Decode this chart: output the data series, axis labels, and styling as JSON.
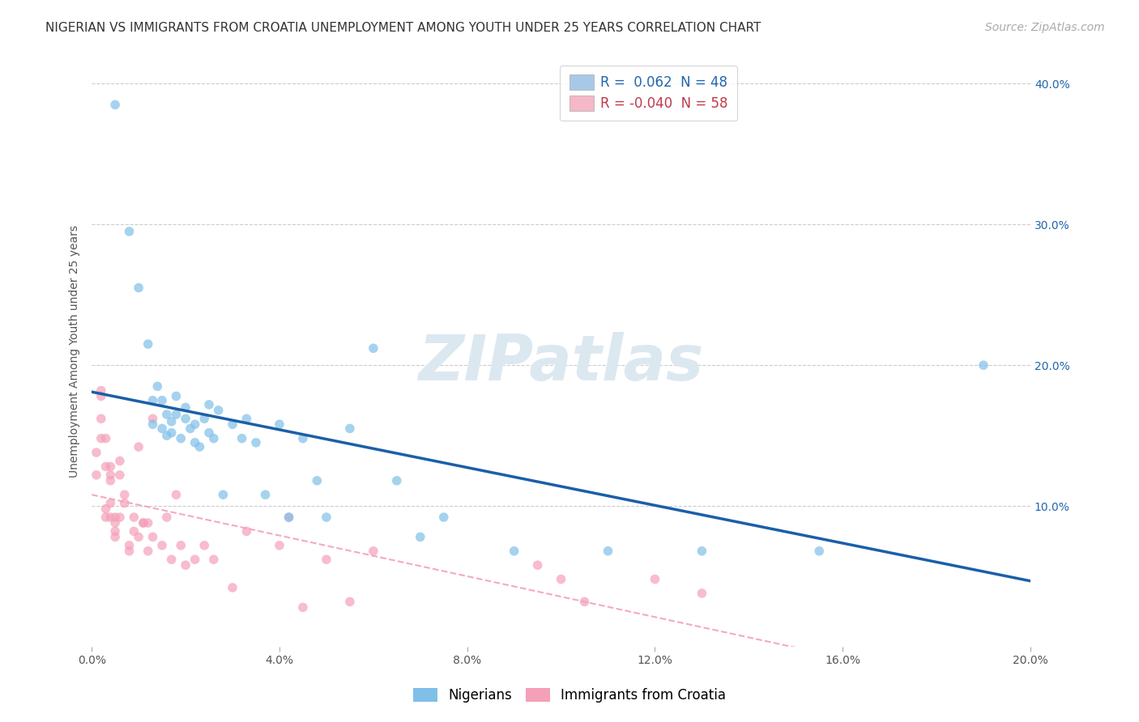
{
  "title": "NIGERIAN VS IMMIGRANTS FROM CROATIA UNEMPLOYMENT AMONG YOUTH UNDER 25 YEARS CORRELATION CHART",
  "source": "Source: ZipAtlas.com",
  "ylabel": "Unemployment Among Youth under 25 years",
  "xlim": [
    0.0,
    0.2
  ],
  "ylim": [
    0.0,
    0.42
  ],
  "xticks": [
    0.0,
    0.04,
    0.08,
    0.12,
    0.16,
    0.2
  ],
  "xtick_labels": [
    "0.0%",
    "4.0%",
    "8.0%",
    "12.0%",
    "16.0%",
    "20.0%"
  ],
  "right_ytick_labels": [
    "10.0%",
    "20.0%",
    "30.0%",
    "40.0%"
  ],
  "right_ytick_vals": [
    0.1,
    0.2,
    0.3,
    0.4
  ],
  "legend1_label": "R =  0.062  N = 48",
  "legend2_label": "R = -0.040  N = 58",
  "legend1_R_color": "#2166ac",
  "legend2_R_color": "#c0394b",
  "legend1_patch_color": "#a8c8e8",
  "legend2_patch_color": "#f4b8c8",
  "watermark": "ZIPatlas",
  "watermark_color": "#dce8f0",
  "bg_color": "#ffffff",
  "grid_color": "#cccccc",
  "scatter_alpha": 0.7,
  "scatter_size": 70,
  "blue_scatter_color": "#7fbfe8",
  "pink_scatter_color": "#f4a0b8",
  "blue_line_color": "#1a5fa8",
  "pink_line_color": "#f4a0b8",
  "title_fontsize": 11,
  "source_fontsize": 10,
  "axis_label_fontsize": 10,
  "tick_fontsize": 10,
  "legend_fontsize": 12,
  "nigerians_x": [
    0.005,
    0.008,
    0.01,
    0.012,
    0.013,
    0.013,
    0.014,
    0.015,
    0.015,
    0.016,
    0.016,
    0.017,
    0.017,
    0.018,
    0.018,
    0.019,
    0.02,
    0.02,
    0.021,
    0.022,
    0.022,
    0.023,
    0.024,
    0.025,
    0.025,
    0.026,
    0.027,
    0.028,
    0.03,
    0.032,
    0.033,
    0.035,
    0.037,
    0.04,
    0.042,
    0.045,
    0.048,
    0.05,
    0.055,
    0.06,
    0.065,
    0.07,
    0.075,
    0.09,
    0.11,
    0.13,
    0.155,
    0.19
  ],
  "nigerians_y": [
    0.385,
    0.295,
    0.255,
    0.215,
    0.175,
    0.158,
    0.185,
    0.175,
    0.155,
    0.15,
    0.165,
    0.16,
    0.152,
    0.165,
    0.178,
    0.148,
    0.162,
    0.17,
    0.155,
    0.158,
    0.145,
    0.142,
    0.162,
    0.172,
    0.152,
    0.148,
    0.168,
    0.108,
    0.158,
    0.148,
    0.162,
    0.145,
    0.108,
    0.158,
    0.092,
    0.148,
    0.118,
    0.092,
    0.155,
    0.212,
    0.118,
    0.078,
    0.092,
    0.068,
    0.068,
    0.068,
    0.068,
    0.2
  ],
  "croatia_x": [
    0.001,
    0.001,
    0.002,
    0.002,
    0.002,
    0.002,
    0.003,
    0.003,
    0.003,
    0.003,
    0.004,
    0.004,
    0.004,
    0.004,
    0.004,
    0.005,
    0.005,
    0.005,
    0.005,
    0.006,
    0.006,
    0.006,
    0.007,
    0.007,
    0.008,
    0.008,
    0.009,
    0.009,
    0.01,
    0.01,
    0.011,
    0.011,
    0.012,
    0.012,
    0.013,
    0.013,
    0.015,
    0.016,
    0.017,
    0.018,
    0.019,
    0.02,
    0.022,
    0.024,
    0.026,
    0.03,
    0.033,
    0.04,
    0.042,
    0.045,
    0.05,
    0.055,
    0.06,
    0.095,
    0.1,
    0.105,
    0.12,
    0.13
  ],
  "croatia_y": [
    0.138,
    0.122,
    0.178,
    0.182,
    0.148,
    0.162,
    0.148,
    0.128,
    0.098,
    0.092,
    0.118,
    0.122,
    0.128,
    0.092,
    0.102,
    0.078,
    0.082,
    0.088,
    0.092,
    0.122,
    0.132,
    0.092,
    0.102,
    0.108,
    0.068,
    0.072,
    0.082,
    0.092,
    0.078,
    0.142,
    0.088,
    0.088,
    0.088,
    0.068,
    0.162,
    0.078,
    0.072,
    0.092,
    0.062,
    0.108,
    0.072,
    0.058,
    0.062,
    0.072,
    0.062,
    0.042,
    0.082,
    0.072,
    0.092,
    0.028,
    0.062,
    0.032,
    0.068,
    0.058,
    0.048,
    0.032,
    0.048,
    0.038
  ]
}
